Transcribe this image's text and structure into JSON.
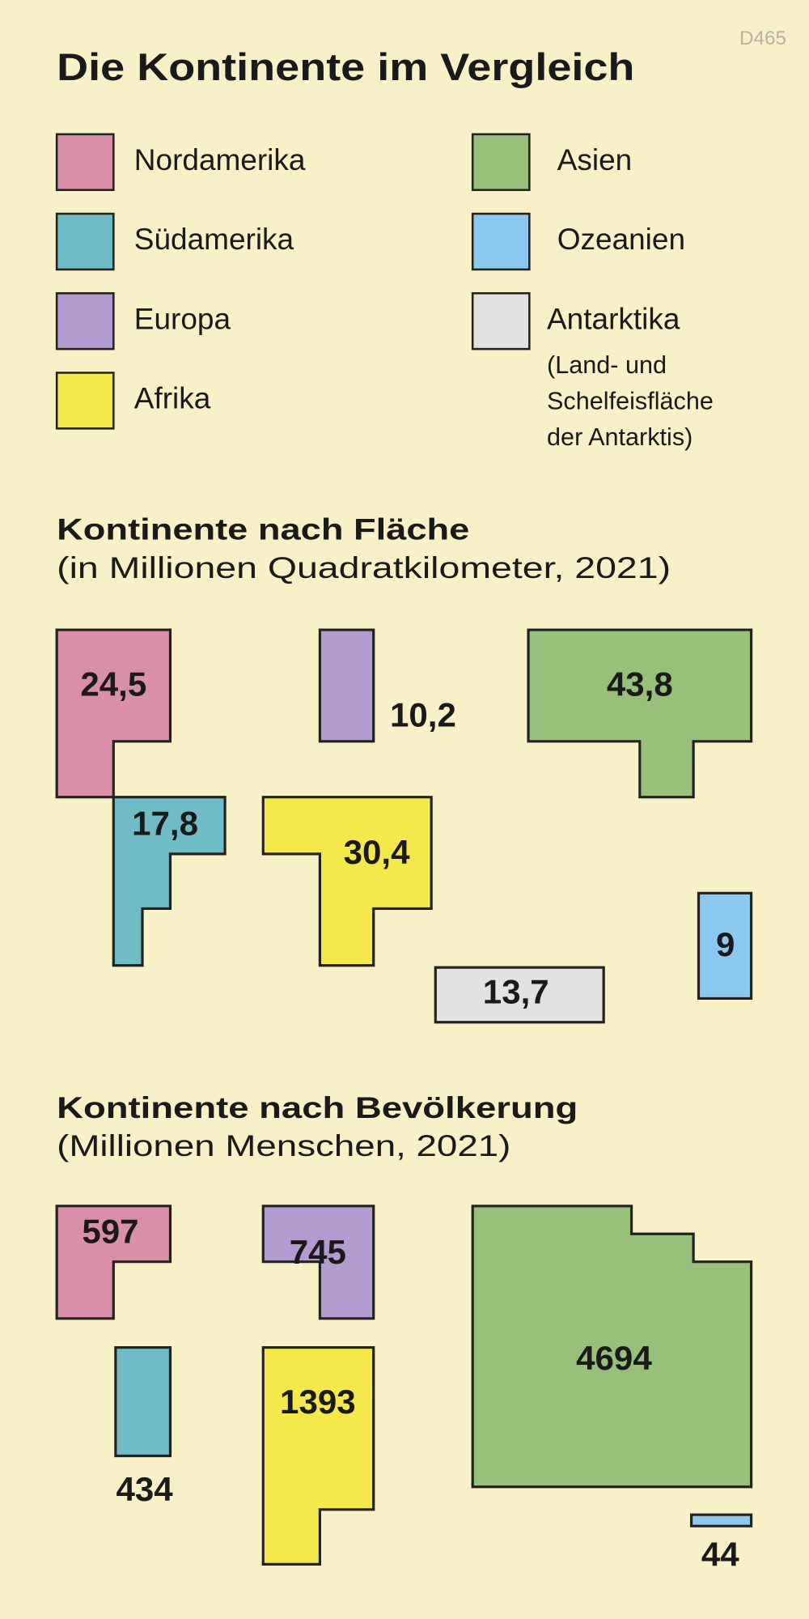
{
  "code": "D465",
  "title": "Die Kontinente im Vergleich",
  "legend": [
    {
      "name": "Nordamerika",
      "color": "#d98fa8"
    },
    {
      "name": "Südamerika",
      "color": "#6fbcc6"
    },
    {
      "name": "Europa",
      "color": "#b39bd0"
    },
    {
      "name": "Afrika",
      "color": "#f5e84a"
    },
    {
      "name": "Asien",
      "color": "#97c07a"
    },
    {
      "name": "Ozeanien",
      "color": "#8cc8ef"
    },
    {
      "name": "Antarktika",
      "color": "#e4e2e0",
      "note": [
        "(Land- und",
        "Schelfeisfläche",
        "der Antarktis)"
      ]
    }
  ],
  "chart_data": [
    {
      "type": "shape",
      "title": "Kontinente nach Fläche",
      "subtitle": "(in Millionen Quadratkilometer, 2021)",
      "values": [
        24.5,
        17.8,
        10.2,
        30.4,
        43.8,
        9,
        13.7
      ],
      "value_labels": [
        "24,5",
        "17,8",
        "10,2",
        "30,4",
        "43,8",
        "9",
        "13,7"
      ],
      "colors": [
        "#d98fa8",
        "#6fbcc6",
        "#b39bd0",
        "#f5e84a",
        "#97c07a",
        "#8cc8ef",
        "#e4e2e0"
      ]
    },
    {
      "type": "shape",
      "title": "Kontinente nach Bevölkerung",
      "subtitle": "(Millionen Menschen, 2021)",
      "values": [
        597,
        434,
        745,
        1393,
        4694,
        44
      ],
      "colors": [
        "#d98fa8",
        "#6fbcc6",
        "#b39bd0",
        "#f5e84a",
        "#97c07a",
        "#8cc8ef"
      ]
    }
  ]
}
